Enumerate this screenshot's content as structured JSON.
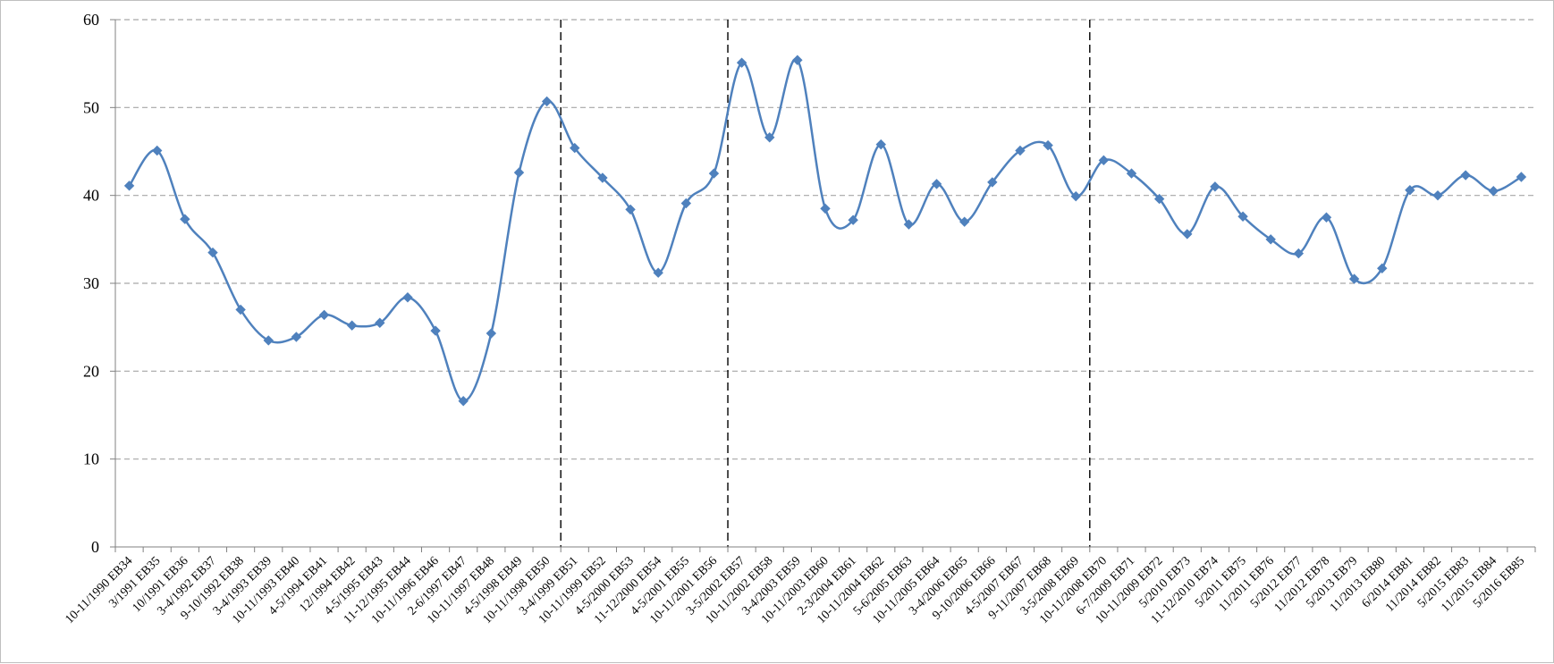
{
  "chart_data": {
    "type": "line",
    "title": "",
    "xlabel": "",
    "ylabel": "",
    "ylim": [
      0,
      60
    ],
    "yticks": [
      0,
      10,
      20,
      30,
      40,
      50,
      60
    ],
    "grid": "horizontal-dashed",
    "smoothed": true,
    "colors": {
      "series": "#4f81bd",
      "grid": "#a6a6a6",
      "divider": "#000000",
      "axis": "#808080"
    },
    "categories": [
      "10-11/1990 EB34",
      "3/1991 EB35",
      "10/1991 EB36",
      "3-4/1992 EB37",
      "9-10/1992 EB38",
      "3-4/1993 EB39",
      "10-11/1993 EB40",
      "4-5/1994 EB41",
      "12/1994 EB42",
      "4-5/1995 EB43",
      "11-12/1995 EB44",
      "10-11/1996 EB46",
      "2-6/1997 EB47",
      "10-11/1997 EB48",
      "4-5/1998 EB49",
      "10-11/1998 EB50",
      "3-4/1999 EB51",
      "10-11/1999 EB52",
      "4-5/2000 EB53",
      "11-12/2000 EB54",
      "4-5/2001 EB55",
      "10-11/2001 EB56",
      "3-5/2002 EB57",
      "10-11/2002 EB58",
      "3-4/2003 EB59",
      "10-11/2003 EB60",
      "2-3/2004 EB61",
      "10-11/2004 EB62",
      "5-6/2005 EB63",
      "10-11/2005 EB64",
      "3-4/2006 EB65",
      "9-10/2006 EB66",
      "4-5/2007 EB67",
      "9-11/2007 EB68",
      "3-5/2008 EB69",
      "10-11/2008 EB70",
      "6-7/2009 EB71",
      "10-11/2009 EB72",
      "5/2010 EB73",
      "11-12/2010 EB74",
      "5/2011 EB75",
      "11/2011 EB76",
      "5/2012 EB77",
      "11/2012 EB78",
      "5/2013 EB79",
      "11/2013 EB80",
      "6/2014 EB81",
      "11/2014 EB82",
      "5/2015 EB83",
      "11/2015 EB84",
      "5/2016 EB85"
    ],
    "series": [
      {
        "values": [
          41.1,
          45.1,
          37.3,
          33.5,
          27.0,
          23.5,
          23.9,
          26.4,
          25.2,
          25.5,
          28.4,
          24.6,
          16.6,
          24.3,
          42.6,
          50.7,
          45.4,
          42.0,
          38.4,
          31.2,
          39.1,
          42.5,
          55.1,
          46.6,
          55.4,
          38.5,
          37.2,
          45.8,
          36.7,
          41.3,
          37.0,
          41.5,
          45.1,
          45.7,
          39.9,
          44.0,
          42.5,
          39.6,
          35.6,
          41.0,
          37.6,
          35.0,
          33.4,
          37.5,
          30.5,
          31.7,
          40.6,
          40.0,
          42.3,
          40.5,
          42.1
        ]
      }
    ],
    "dividers_after_category_index": [
      15,
      21,
      34
    ]
  }
}
